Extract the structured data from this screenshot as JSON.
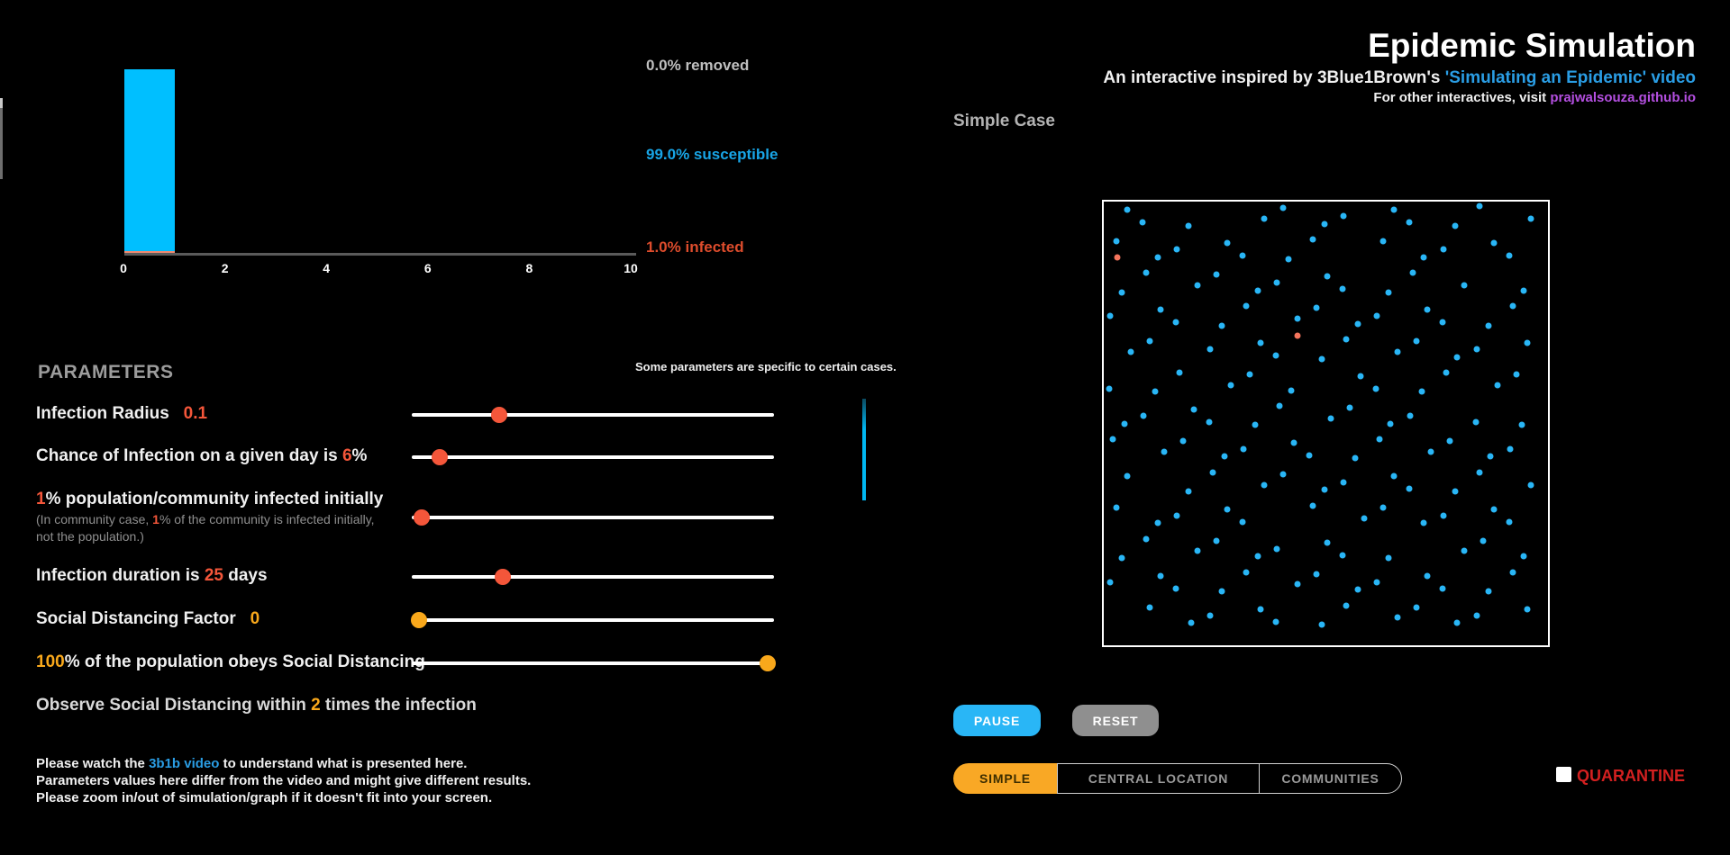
{
  "colors": {
    "bar_cyan": "#00bfff",
    "dot_cyan": "#29b6f6",
    "infected_salmon": "#f4745c",
    "knob_red": "#f4563a",
    "amber": "#f9a81b",
    "tab_active": "#f9a825",
    "link_blue": "#2a9de4",
    "link_purple": "#b44fe0",
    "quarantine_red": "#d32020",
    "pause_cyan": "#29b6f6",
    "reset_gray": "#8f8f8f"
  },
  "chart_data": {
    "type": "bar",
    "title": "",
    "xlabel": "",
    "ylabel": "",
    "xlim": [
      0,
      10
    ],
    "x_ticks": [
      0,
      2,
      4,
      6,
      8,
      10
    ],
    "grid": false,
    "bars": [
      {
        "x0": 0,
        "x1": 1,
        "stack": [
          {
            "name": "susceptible",
            "pct": 99.0,
            "color": "#00bfff"
          },
          {
            "name": "infected",
            "pct": 1.0,
            "color": "#f08a70"
          }
        ]
      }
    ],
    "legend_labels": [
      "0.0% removed",
      "99.0% susceptible",
      "1.0% infected"
    ]
  },
  "stats": {
    "removed": "0.0% removed",
    "susceptible": "99.0% susceptible",
    "infected": "1.0% infected"
  },
  "header": {
    "title": "Epidemic Simulation",
    "subtitle": [
      [
        "An interactive inspired by 3Blue1Brown's ",
        "w"
      ],
      [
        "'Simulating an Epidemic' video",
        "b",
        "simulating-epidemic-video-link"
      ]
    ],
    "other": [
      [
        "For other interactives, visit ",
        "w"
      ],
      [
        "prajwalsouza.github.io",
        "p",
        "prajwalsouza-link"
      ]
    ]
  },
  "parameters": {
    "heading": "PARAMETERS",
    "side_note": "Some parameters are specific to certain cases.",
    "labels": {
      "radius": [
        [
          "Infection Radius   ",
          "w"
        ],
        [
          "0.1",
          "r"
        ]
      ],
      "chance": [
        [
          "Chance of Infection on a given day is ",
          "w"
        ],
        [
          "6",
          "r"
        ],
        [
          "%",
          "w"
        ]
      ],
      "initial": [
        [
          "1",
          "r"
        ],
        [
          "% population/community infected initially",
          "w"
        ]
      ],
      "initial_note1": [
        [
          "(In community case, ",
          "g"
        ],
        [
          "1",
          "r"
        ],
        [
          "% of the community is infected initially,",
          "g"
        ]
      ],
      "initial_note2": [
        [
          "not the population.)",
          "g"
        ]
      ],
      "duration": [
        [
          "Infection duration is ",
          "w"
        ],
        [
          "25",
          "r"
        ],
        [
          " days",
          "w"
        ]
      ],
      "sdf": [
        [
          "Social Distancing Factor   ",
          "w"
        ],
        [
          "0",
          "a"
        ]
      ],
      "obeys": [
        [
          "100",
          "a"
        ],
        [
          "% of the population obeys Social Distancing",
          "w"
        ]
      ],
      "observe": [
        [
          "Observe Social Distancing within ",
          "w2"
        ],
        [
          "2",
          "a"
        ],
        [
          " times the infection",
          "w2"
        ]
      ]
    },
    "sliders": [
      {
        "frac": 0.241,
        "color": "r"
      },
      {
        "frac": 0.077,
        "color": "r"
      },
      {
        "frac": 0.027,
        "color": "r"
      },
      {
        "frac": 0.251,
        "color": "r"
      },
      {
        "frac": 0.02,
        "color": "a"
      },
      {
        "frac": 0.982,
        "color": "a"
      }
    ]
  },
  "footer": {
    "line1": [
      [
        "Please watch the ",
        "w"
      ],
      [
        "3b1b video",
        "b",
        "3b1b-video-link"
      ],
      [
        " to understand what is presented here.",
        "w"
      ]
    ],
    "line2": [
      [
        "Parameters values here differ from the video and might give different results.",
        "w"
      ]
    ],
    "line3": [
      [
        "Please zoom in/out of simulation/graph if it doesn't fit into your screen.",
        "w"
      ]
    ]
  },
  "simulation": {
    "case_label": "Simple Case",
    "pause_label": "PAUSE",
    "reset_label": "RESET",
    "tabs": [
      {
        "label": "SIMPLE",
        "active": true
      },
      {
        "label": "CENTRAL LOCATION",
        "active": false
      },
      {
        "label": "COMMUNITIES",
        "active": false
      }
    ],
    "quarantine_label": "QUARANTINE",
    "dots": {
      "infected": [
        [
          3.0,
          12.5
        ],
        [
          43.7,
          30.2
        ]
      ],
      "susceptible": [
        [
          5.3,
          1.8
        ],
        [
          8.7,
          4.7
        ],
        [
          19.1,
          5.4
        ],
        [
          36.1,
          3.8
        ],
        [
          40.3,
          1.5
        ],
        [
          49.6,
          5.0
        ],
        [
          54.0,
          3.3
        ],
        [
          65.3,
          1.8
        ],
        [
          68.7,
          4.7
        ],
        [
          79.1,
          5.4
        ],
        [
          84.6,
          1.0
        ],
        [
          96.1,
          3.8
        ],
        [
          2.8,
          9.0
        ],
        [
          12.1,
          12.5
        ],
        [
          16.5,
          10.8
        ],
        [
          27.8,
          9.3
        ],
        [
          31.2,
          12.2
        ],
        [
          41.6,
          12.9
        ],
        [
          47.1,
          8.5
        ],
        [
          62.8,
          9.0
        ],
        [
          72.1,
          12.5
        ],
        [
          76.5,
          10.8
        ],
        [
          87.8,
          9.3
        ],
        [
          91.2,
          12.2
        ],
        [
          4.1,
          20.4
        ],
        [
          9.6,
          16.0
        ],
        [
          21.1,
          18.8
        ],
        [
          25.3,
          16.5
        ],
        [
          34.6,
          20.0
        ],
        [
          39.0,
          18.3
        ],
        [
          50.3,
          16.8
        ],
        [
          53.7,
          19.7
        ],
        [
          64.1,
          20.4
        ],
        [
          69.6,
          16.0
        ],
        [
          81.1,
          18.8
        ],
        [
          94.6,
          20.0
        ],
        [
          1.5,
          25.8
        ],
        [
          12.8,
          24.3
        ],
        [
          16.2,
          27.2
        ],
        [
          26.6,
          27.9
        ],
        [
          32.1,
          23.5
        ],
        [
          43.6,
          26.3
        ],
        [
          47.8,
          24.0
        ],
        [
          57.1,
          27.5
        ],
        [
          61.5,
          25.8
        ],
        [
          72.8,
          24.3
        ],
        [
          76.2,
          27.2
        ],
        [
          86.6,
          27.9
        ],
        [
          92.1,
          23.5
        ],
        [
          6.1,
          33.8
        ],
        [
          10.3,
          31.5
        ],
        [
          24.0,
          33.3
        ],
        [
          35.3,
          31.8
        ],
        [
          38.7,
          34.7
        ],
        [
          49.1,
          35.4
        ],
        [
          54.6,
          31.0
        ],
        [
          66.1,
          33.8
        ],
        [
          70.3,
          31.5
        ],
        [
          79.6,
          35.0
        ],
        [
          84.0,
          33.3
        ],
        [
          95.3,
          31.8
        ],
        [
          1.2,
          42.2
        ],
        [
          11.6,
          42.9
        ],
        [
          17.1,
          38.5
        ],
        [
          28.6,
          41.3
        ],
        [
          32.8,
          39.0
        ],
        [
          42.1,
          42.5
        ],
        [
          57.8,
          39.3
        ],
        [
          61.2,
          42.2
        ],
        [
          71.6,
          42.9
        ],
        [
          77.1,
          38.5
        ],
        [
          88.6,
          41.3
        ],
        [
          92.8,
          39.0
        ],
        [
          4.6,
          50.0
        ],
        [
          9.0,
          48.3
        ],
        [
          20.3,
          46.8
        ],
        [
          23.7,
          49.7
        ],
        [
          34.1,
          50.4
        ],
        [
          39.6,
          46.0
        ],
        [
          51.1,
          48.8
        ],
        [
          55.3,
          46.5
        ],
        [
          64.6,
          50.0
        ],
        [
          69.0,
          48.3
        ],
        [
          83.7,
          49.7
        ],
        [
          94.1,
          50.4
        ],
        [
          2.1,
          53.5
        ],
        [
          13.6,
          56.3
        ],
        [
          17.8,
          54.0
        ],
        [
          27.1,
          57.5
        ],
        [
          31.5,
          55.8
        ],
        [
          42.8,
          54.3
        ],
        [
          46.2,
          57.2
        ],
        [
          56.6,
          57.9
        ],
        [
          62.1,
          53.5
        ],
        [
          73.6,
          56.3
        ],
        [
          77.8,
          54.0
        ],
        [
          87.1,
          57.5
        ],
        [
          91.5,
          55.8
        ],
        [
          5.3,
          61.8
        ],
        [
          19.1,
          65.4
        ],
        [
          24.6,
          61.0
        ],
        [
          36.1,
          63.8
        ],
        [
          40.3,
          61.5
        ],
        [
          49.6,
          65.0
        ],
        [
          54.0,
          63.3
        ],
        [
          65.3,
          61.8
        ],
        [
          68.7,
          64.7
        ],
        [
          79.1,
          65.4
        ],
        [
          84.6,
          61.0
        ],
        [
          96.1,
          63.8
        ],
        [
          2.8,
          69.0
        ],
        [
          12.1,
          72.5
        ],
        [
          16.5,
          70.8
        ],
        [
          27.8,
          69.3
        ],
        [
          31.2,
          72.2
        ],
        [
          47.1,
          68.5
        ],
        [
          58.6,
          71.3
        ],
        [
          62.8,
          69.0
        ],
        [
          72.1,
          72.5
        ],
        [
          76.5,
          70.8
        ],
        [
          87.8,
          69.3
        ],
        [
          91.2,
          72.2
        ],
        [
          4.1,
          80.4
        ],
        [
          9.6,
          76.0
        ],
        [
          21.1,
          78.8
        ],
        [
          25.3,
          76.5
        ],
        [
          34.6,
          80.0
        ],
        [
          39.0,
          78.3
        ],
        [
          50.3,
          76.8
        ],
        [
          53.7,
          79.7
        ],
        [
          64.1,
          80.4
        ],
        [
          81.1,
          78.8
        ],
        [
          85.3,
          76.5
        ],
        [
          94.6,
          80.0
        ],
        [
          1.5,
          85.8
        ],
        [
          12.8,
          84.3
        ],
        [
          16.2,
          87.2
        ],
        [
          26.6,
          87.9
        ],
        [
          32.1,
          83.5
        ],
        [
          43.6,
          86.3
        ],
        [
          47.8,
          84.0
        ],
        [
          57.1,
          87.5
        ],
        [
          61.5,
          85.8
        ],
        [
          72.8,
          84.3
        ],
        [
          76.2,
          87.2
        ],
        [
          86.6,
          87.9
        ],
        [
          92.1,
          83.5
        ],
        [
          10.3,
          91.5
        ],
        [
          19.6,
          95.0
        ],
        [
          24.0,
          93.3
        ],
        [
          35.3,
          91.8
        ],
        [
          38.7,
          94.7
        ],
        [
          49.1,
          95.4
        ],
        [
          54.6,
          91.0
        ],
        [
          66.1,
          93.8
        ],
        [
          70.3,
          91.5
        ],
        [
          79.6,
          95.0
        ],
        [
          84.0,
          93.3
        ],
        [
          95.3,
          91.8
        ]
      ]
    }
  }
}
